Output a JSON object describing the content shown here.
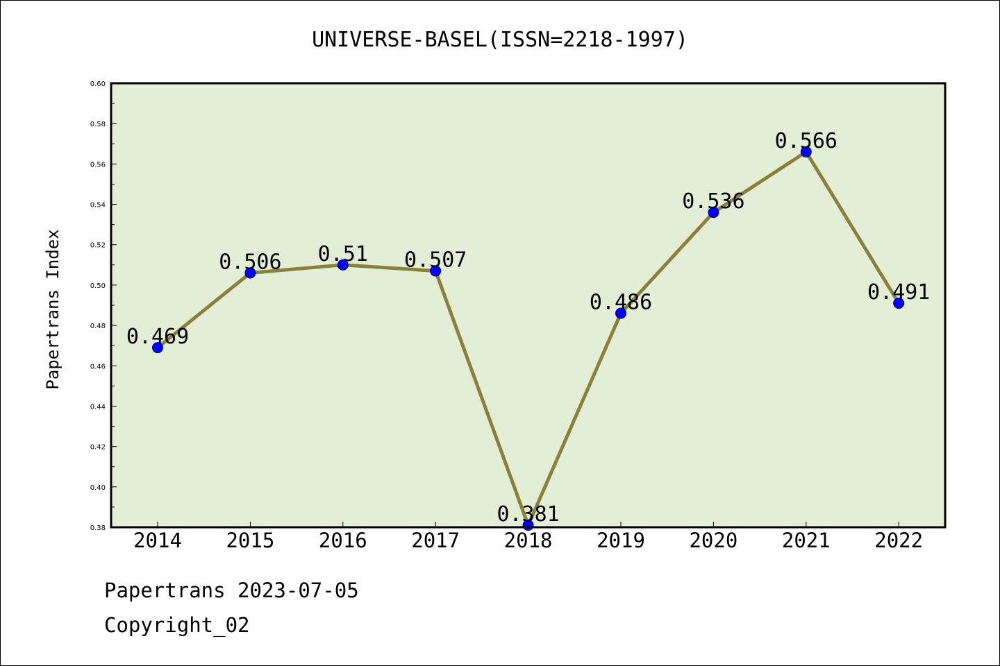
{
  "chart_data": {
    "type": "line",
    "title": "UNIVERSE-BASEL(ISSN=2218-1997)",
    "xlabel": "",
    "ylabel": "Papertrans Index",
    "categories": [
      "2014",
      "2015",
      "2016",
      "2017",
      "2018",
      "2019",
      "2020",
      "2021",
      "2022"
    ],
    "series": [
      {
        "values": [
          0.469,
          0.506,
          0.51,
          0.507,
          0.381,
          0.486,
          0.536,
          0.566,
          0.491
        ],
        "data_labels": [
          "0.469",
          "0.506",
          "0.51",
          "0.507",
          "0.381",
          "0.486",
          "0.536",
          "0.566",
          "0.491"
        ]
      }
    ],
    "ylim": [
      0.38,
      0.6
    ],
    "yticks": [
      0.38,
      0.4,
      0.42,
      0.44,
      0.46,
      0.48,
      0.5,
      0.52,
      0.54,
      0.56,
      0.58,
      0.6
    ],
    "ytick_labels": [
      "0.38",
      "0.40",
      "0.42",
      "0.44",
      "0.46",
      "0.48",
      "0.50",
      "0.52",
      "0.54",
      "0.56",
      "0.58",
      "0.60"
    ],
    "grid": false,
    "colors": {
      "plot_background": "#e2efd6",
      "line": "#8b8038",
      "marker": "#0000ff",
      "marker_edge": "#000080"
    }
  },
  "footer": {
    "line1": "Papertrans 2023-07-05",
    "line2": "Copyright_02"
  }
}
